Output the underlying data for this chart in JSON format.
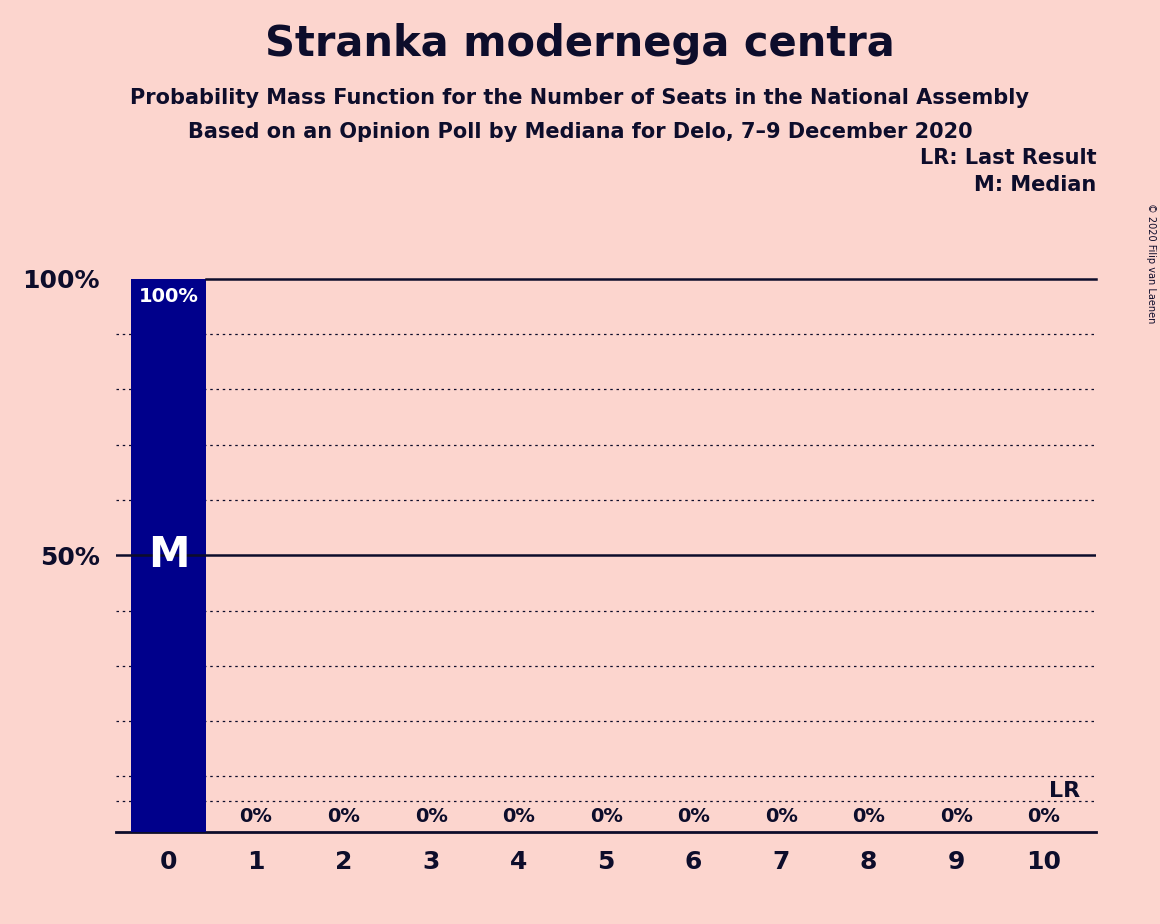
{
  "title": "Stranka modernega centra",
  "subtitle1": "Probability Mass Function for the Number of Seats in the National Assembly",
  "subtitle2": "Based on an Opinion Poll by Mediana for Delo, 7–9 December 2020",
  "copyright": "© 2020 Filip van Laenen",
  "background_color": "#fcd5ce",
  "bar_color": "#00008B",
  "text_color": "#0d0d2b",
  "seats": [
    0,
    1,
    2,
    3,
    4,
    5,
    6,
    7,
    8,
    9,
    10
  ],
  "probabilities": [
    1.0,
    0.0,
    0.0,
    0.0,
    0.0,
    0.0,
    0.0,
    0.0,
    0.0,
    0.0,
    0.0
  ],
  "median_seat": 0,
  "last_result_seat": 10,
  "legend_lr_label": "LR: Last Result",
  "legend_m_label": "M: Median",
  "lr_label": "LR",
  "m_label": "M"
}
